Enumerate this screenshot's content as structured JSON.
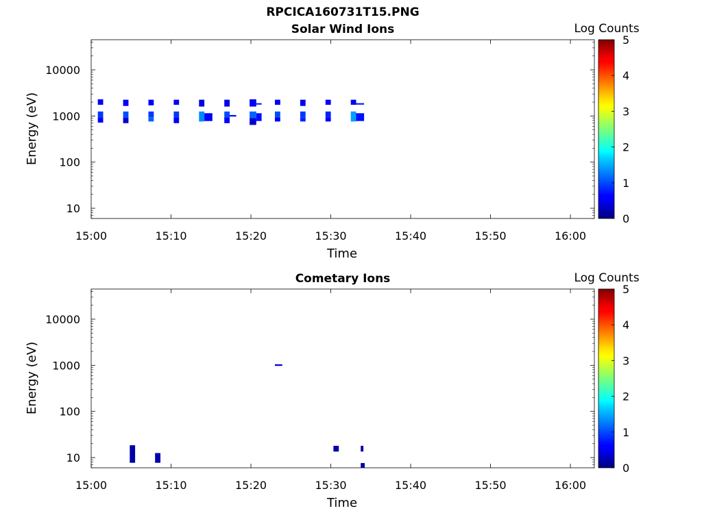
{
  "figure": {
    "suptitle": "RPCICA160731T15.PNG"
  },
  "chart_data": [
    {
      "type": "heatmap",
      "title": "Solar Wind Ions",
      "xlabel": "Time",
      "ylabel": "Energy (eV)",
      "yscale": "log",
      "x_tick_labels": [
        "15:00",
        "15:10",
        "15:20",
        "15:30",
        "15:40",
        "15:50",
        "16:00"
      ],
      "xlim": [
        "15:00",
        "16:03"
      ],
      "y_tick_labels": [
        "10",
        "100",
        "1000",
        "10000"
      ],
      "ylim": [
        6,
        45000
      ],
      "colorbar": {
        "label": "Log Counts",
        "range": [
          0,
          5
        ],
        "tick_labels": [
          "0",
          "1",
          "2",
          "3",
          "4",
          "5"
        ],
        "colormap": "jet"
      },
      "cells": [
        {
          "t_start": "15:00:50",
          "t_end": "15:01:30",
          "e_low": 1750,
          "e_high": 2300,
          "log_counts": 0.6
        },
        {
          "t_start": "15:00:50",
          "t_end": "15:01:30",
          "e_low": 940,
          "e_high": 1250,
          "log_counts": 0.9
        },
        {
          "t_start": "15:00:50",
          "t_end": "15:01:30",
          "e_low": 720,
          "e_high": 940,
          "log_counts": 0.6
        },
        {
          "t_start": "15:04:00",
          "t_end": "15:04:40",
          "e_low": 1650,
          "e_high": 2250,
          "log_counts": 0.6
        },
        {
          "t_start": "15:04:00",
          "t_end": "15:04:40",
          "e_low": 910,
          "e_high": 1250,
          "log_counts": 1.0
        },
        {
          "t_start": "15:04:00",
          "t_end": "15:04:40",
          "e_low": 700,
          "e_high": 910,
          "log_counts": 0.4
        },
        {
          "t_start": "15:07:10",
          "t_end": "15:07:50",
          "e_low": 1700,
          "e_high": 2250,
          "log_counts": 0.6
        },
        {
          "t_start": "15:07:10",
          "t_end": "15:07:50",
          "e_low": 940,
          "e_high": 1250,
          "log_counts": 0.9
        },
        {
          "t_start": "15:07:10",
          "t_end": "15:07:50",
          "e_low": 760,
          "e_high": 940,
          "log_counts": 1.1
        },
        {
          "t_start": "15:10:20",
          "t_end": "15:11:00",
          "e_low": 1750,
          "e_high": 2250,
          "log_counts": 0.6
        },
        {
          "t_start": "15:10:20",
          "t_end": "15:11:00",
          "e_low": 940,
          "e_high": 1250,
          "log_counts": 0.9
        },
        {
          "t_start": "15:10:20",
          "t_end": "15:11:00",
          "e_low": 700,
          "e_high": 940,
          "log_counts": 0.6
        },
        {
          "t_start": "15:13:30",
          "t_end": "15:14:10",
          "e_low": 1600,
          "e_high": 2250,
          "log_counts": 0.5
        },
        {
          "t_start": "15:13:30",
          "t_end": "15:14:10",
          "e_low": 760,
          "e_high": 1250,
          "log_counts": 1.3
        },
        {
          "t_start": "15:14:10",
          "t_end": "15:15:10",
          "e_low": 780,
          "e_high": 1150,
          "log_counts": 0.6
        },
        {
          "t_start": "15:16:40",
          "t_end": "15:17:20",
          "e_low": 1600,
          "e_high": 2250,
          "log_counts": 0.5
        },
        {
          "t_start": "15:16:40",
          "t_end": "15:17:20",
          "e_low": 940,
          "e_high": 1250,
          "log_counts": 1.0
        },
        {
          "t_start": "15:16:40",
          "t_end": "15:17:20",
          "e_low": 700,
          "e_high": 940,
          "log_counts": 0.6
        },
        {
          "t_start": "15:17:20",
          "t_end": "15:18:10",
          "e_low": 970,
          "e_high": 1050,
          "log_counts": 0.7
        },
        {
          "t_start": "15:19:50",
          "t_end": "15:20:40",
          "e_low": 1600,
          "e_high": 2300,
          "log_counts": 0.6
        },
        {
          "t_start": "15:20:40",
          "t_end": "15:21:20",
          "e_low": 1760,
          "e_high": 1900,
          "log_counts": 0.8
        },
        {
          "t_start": "15:19:50",
          "t_end": "15:20:40",
          "e_low": 900,
          "e_high": 1250,
          "log_counts": 1.1
        },
        {
          "t_start": "15:20:40",
          "t_end": "15:21:20",
          "e_low": 780,
          "e_high": 1150,
          "log_counts": 0.7
        },
        {
          "t_start": "15:19:50",
          "t_end": "15:20:40",
          "e_low": 640,
          "e_high": 900,
          "log_counts": 0.4
        },
        {
          "t_start": "15:23:00",
          "t_end": "15:23:40",
          "e_low": 1750,
          "e_high": 2250,
          "log_counts": 0.6
        },
        {
          "t_start": "15:23:00",
          "t_end": "15:23:40",
          "e_low": 940,
          "e_high": 1250,
          "log_counts": 1.0
        },
        {
          "t_start": "15:23:00",
          "t_end": "15:23:40",
          "e_low": 760,
          "e_high": 940,
          "log_counts": 0.6
        },
        {
          "t_start": "15:26:10",
          "t_end": "15:26:50",
          "e_low": 1650,
          "e_high": 2250,
          "log_counts": 0.5
        },
        {
          "t_start": "15:26:10",
          "t_end": "15:26:50",
          "e_low": 940,
          "e_high": 1250,
          "log_counts": 0.9
        },
        {
          "t_start": "15:26:10",
          "t_end": "15:26:50",
          "e_low": 760,
          "e_high": 940,
          "log_counts": 0.8
        },
        {
          "t_start": "15:29:20",
          "t_end": "15:30:00",
          "e_low": 1750,
          "e_high": 2250,
          "log_counts": 0.6
        },
        {
          "t_start": "15:29:20",
          "t_end": "15:30:00",
          "e_low": 940,
          "e_high": 1250,
          "log_counts": 0.8
        },
        {
          "t_start": "15:29:20",
          "t_end": "15:30:00",
          "e_low": 760,
          "e_high": 940,
          "log_counts": 0.6
        },
        {
          "t_start": "15:32:30",
          "t_end": "15:33:10",
          "e_low": 1750,
          "e_high": 2250,
          "log_counts": 0.6
        },
        {
          "t_start": "15:32:30",
          "t_end": "15:33:10",
          "e_low": 760,
          "e_high": 1250,
          "log_counts": 1.4
        },
        {
          "t_start": "15:33:10",
          "t_end": "15:34:10",
          "e_low": 1760,
          "e_high": 1900,
          "log_counts": 0.8
        },
        {
          "t_start": "15:33:10",
          "t_end": "15:34:10",
          "e_low": 780,
          "e_high": 1150,
          "log_counts": 0.7
        }
      ]
    },
    {
      "type": "heatmap",
      "title": "Cometary Ions",
      "xlabel": "Time",
      "ylabel": "Energy (eV)",
      "yscale": "log",
      "x_tick_labels": [
        "15:00",
        "15:10",
        "15:20",
        "15:30",
        "15:40",
        "15:50",
        "16:00"
      ],
      "xlim": [
        "15:00",
        "16:03"
      ],
      "y_tick_labels": [
        "10",
        "100",
        "1000",
        "10000"
      ],
      "ylim": [
        6,
        45000
      ],
      "colorbar": {
        "label": "Log Counts",
        "range": [
          0,
          5
        ],
        "tick_labels": [
          "0",
          "1",
          "2",
          "3",
          "4",
          "5"
        ],
        "colormap": "jet"
      },
      "cells": [
        {
          "t_start": "15:04:50",
          "t_end": "15:05:30",
          "e_low": 7.7,
          "e_high": 18.5,
          "log_counts": 0.2
        },
        {
          "t_start": "15:08:00",
          "t_end": "15:08:40",
          "e_low": 7.7,
          "e_high": 12.5,
          "log_counts": 0.2
        },
        {
          "t_start": "15:23:00",
          "t_end": "15:23:55",
          "e_low": 970,
          "e_high": 1050,
          "log_counts": 0.4
        },
        {
          "t_start": "15:30:20",
          "t_end": "15:31:00",
          "e_low": 13.5,
          "e_high": 18.0,
          "log_counts": 0.2
        },
        {
          "t_start": "15:33:45",
          "t_end": "15:34:05",
          "e_low": 13.5,
          "e_high": 18.0,
          "log_counts": 0.2
        },
        {
          "t_start": "15:33:45",
          "t_end": "15:34:15",
          "e_low": 6.0,
          "e_high": 7.6,
          "log_counts": 0.2
        }
      ]
    }
  ]
}
